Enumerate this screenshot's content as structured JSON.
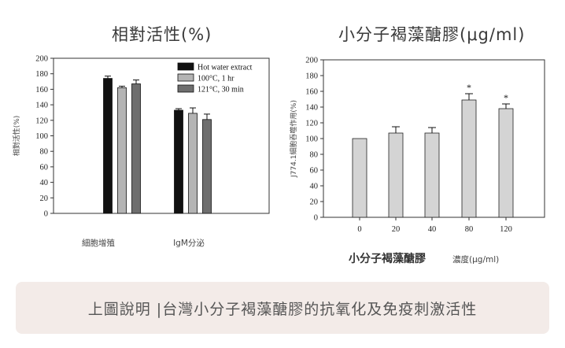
{
  "caption": "上圖說明 |台灣小分子褐藻醣膠的抗氧化及免疫刺激活性",
  "chart_data": [
    {
      "type": "bar",
      "title": "相對活性(%)",
      "ylabel": "相對活性(%)",
      "xlabel": "",
      "ylim": [
        0,
        200
      ],
      "yticks": [
        0,
        20,
        40,
        60,
        80,
        100,
        120,
        140,
        160,
        180,
        200
      ],
      "categories": [
        "細胞增殖",
        "IgM分泌"
      ],
      "legend_position": "top-right",
      "series": [
        {
          "name": "Hot water extract",
          "color": "#111111",
          "values": [
            174,
            133
          ],
          "errors": [
            3,
            2
          ]
        },
        {
          "name": "100°C, 1 hr",
          "color": "#b4b4b4",
          "values": [
            162,
            129
          ],
          "errors": [
            2,
            7
          ]
        },
        {
          "name": "121°C, 30 min",
          "color": "#6e6e6e",
          "values": [
            167,
            121
          ],
          "errors": [
            5,
            7
          ]
        }
      ]
    },
    {
      "type": "bar",
      "title": "小分子褐藻醣膠(μg/ml)",
      "ylabel": "J774.1細胞吞噬作用(%)",
      "xlabel_main": "小分子褐藻醣膠",
      "xlabel_unit": "濃度(μg/ml)",
      "ylim": [
        0,
        200
      ],
      "yticks": [
        0,
        20,
        40,
        60,
        80,
        100,
        120,
        140,
        160,
        180,
        200
      ],
      "categories": [
        "0",
        "20",
        "40",
        "80",
        "120"
      ],
      "color": "#d4d4d4",
      "values": [
        100,
        107,
        107,
        149,
        138
      ],
      "errors": [
        0,
        8,
        7,
        8,
        6
      ],
      "significance": [
        "",
        "",
        "",
        "*",
        "*"
      ]
    }
  ]
}
